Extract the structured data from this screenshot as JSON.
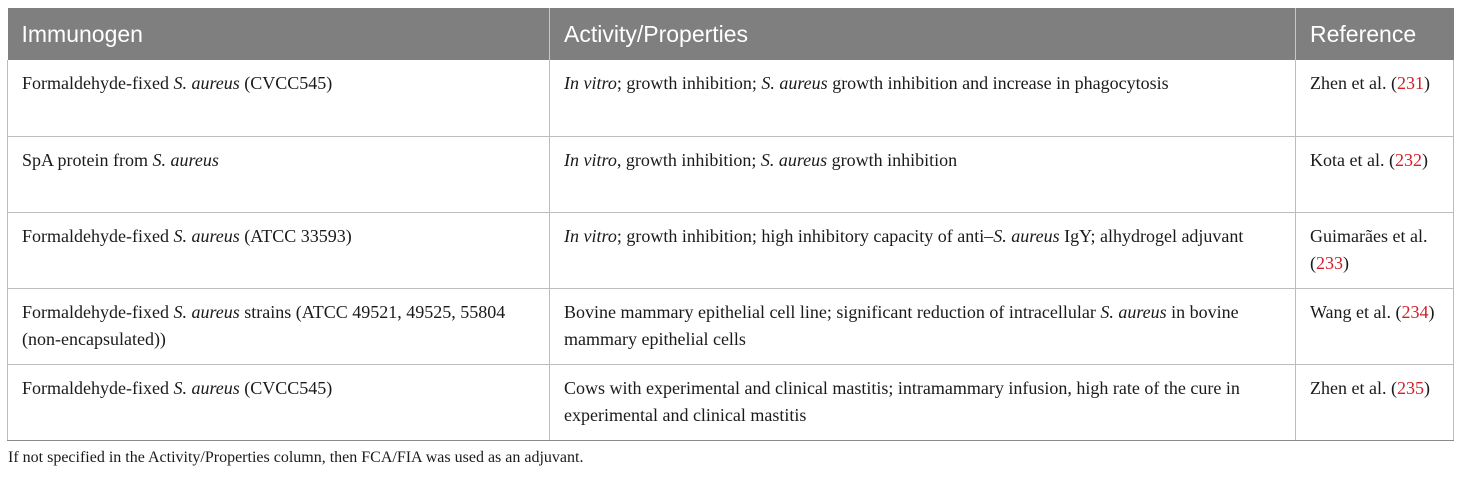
{
  "table": {
    "headers": [
      "Immunogen",
      "Activity/Properties",
      "Reference"
    ],
    "rows": [
      {
        "immunogen": [
          {
            "t": "Formaldehyde-fixed "
          },
          {
            "t": "S. aureus",
            "i": true
          },
          {
            "t": " (CVCC545)"
          }
        ],
        "activity": [
          {
            "t": "In vitro",
            "i": true
          },
          {
            "t": "; growth inhibition; "
          },
          {
            "t": "S. aureus",
            "i": true
          },
          {
            "t": " growth inhibition and increase in phagocytosis"
          }
        ],
        "reference": {
          "authors": "Zhen et al.",
          "num": "231"
        }
      },
      {
        "immunogen": [
          {
            "t": "SpA protein from "
          },
          {
            "t": "S. aureus",
            "i": true
          }
        ],
        "activity": [
          {
            "t": "In vitro",
            "i": true
          },
          {
            "t": ", growth inhibition; "
          },
          {
            "t": "S. aureus",
            "i": true
          },
          {
            "t": " growth inhibition"
          }
        ],
        "reference": {
          "authors": "Kota et al.",
          "num": "232"
        }
      },
      {
        "immunogen": [
          {
            "t": "Formaldehyde-fixed "
          },
          {
            "t": "S. aureus",
            "i": true
          },
          {
            "t": " (ATCC 33593)"
          }
        ],
        "activity": [
          {
            "t": "In vitro",
            "i": true
          },
          {
            "t": "; growth inhibition; high inhibitory capacity of anti–"
          },
          {
            "t": "S. aureus",
            "i": true
          },
          {
            "t": " IgY; alhydrogel adjuvant"
          }
        ],
        "reference": {
          "authors": "Guimarães et al.",
          "num": "233"
        }
      },
      {
        "immunogen": [
          {
            "t": "Formaldehyde-fixed "
          },
          {
            "t": "S. aureus",
            "i": true
          },
          {
            "t": " strains (ATCC 49521, 49525, 55804 (non-encapsulated))"
          }
        ],
        "activity": [
          {
            "t": "Bovine mammary epithelial cell line; significant reduction of intracellular "
          },
          {
            "t": "S. aureus",
            "i": true
          },
          {
            "t": " in bovine mammary epithelial cells"
          }
        ],
        "reference": {
          "authors": "Wang et al.",
          "num": "234"
        }
      },
      {
        "immunogen": [
          {
            "t": "Formaldehyde-fixed "
          },
          {
            "t": "S. aureus",
            "i": true
          },
          {
            "t": " (CVCC545)"
          }
        ],
        "activity": [
          {
            "t": "Cows with experimental and clinical mastitis; intramammary infusion, high rate of the cure in experimental and clinical mastitis"
          }
        ],
        "reference": {
          "authors": "Zhen et al.",
          "num": "235"
        }
      }
    ]
  },
  "footnote": "If not specified in the Activity/Properties column, then FCA/FIA was used as an adjuvant.",
  "colors": {
    "header_bg": "#7f7f7f",
    "link": "#d0202a"
  }
}
